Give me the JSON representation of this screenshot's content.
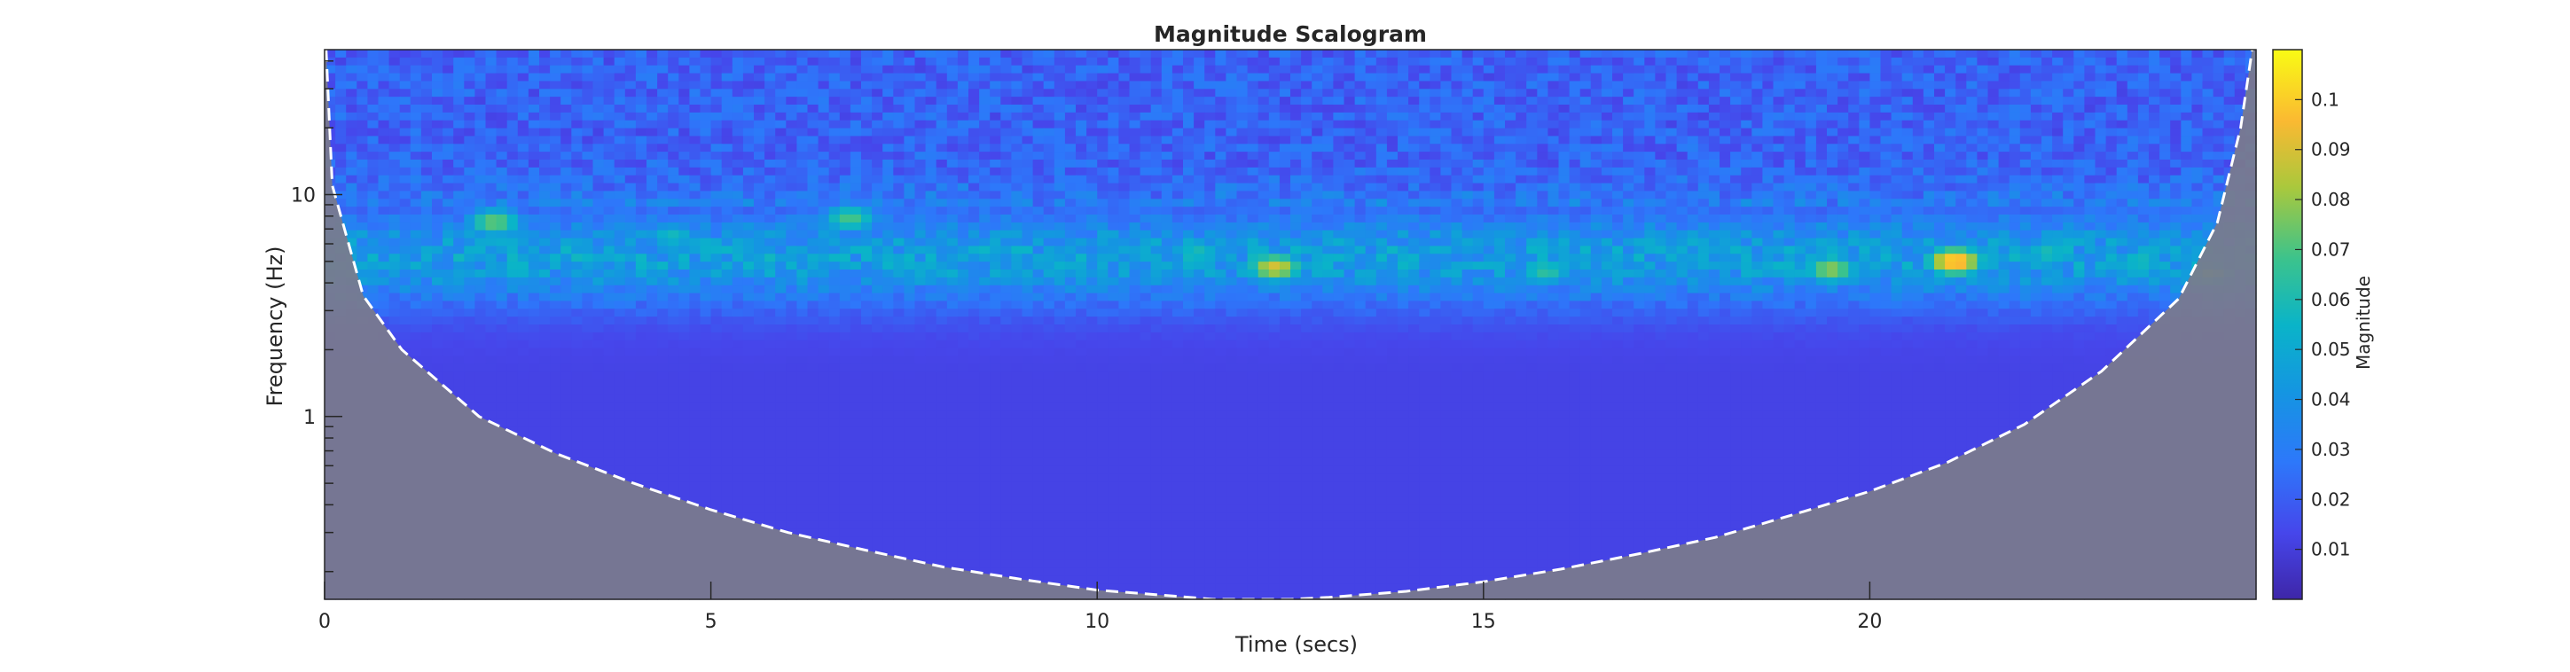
{
  "chart_data": {
    "type": "heatmap",
    "title": "Magnitude Scalogram",
    "xlabel": "Time (secs)",
    "ylabel": "Frequency (Hz)",
    "xlim": [
      0,
      25
    ],
    "ylim": [
      0.15,
      45
    ],
    "yscale": "log",
    "xticks": [
      0,
      5,
      10,
      15,
      20
    ],
    "xtick_labels": [
      "0",
      "5",
      "10",
      "15",
      "20"
    ],
    "yticks": [
      1,
      10
    ],
    "ytick_labels": [
      "1",
      "10"
    ],
    "colorbar": {
      "label": "Magnitude",
      "range": [
        0,
        0.11
      ],
      "ticks": [
        0.01,
        0.02,
        0.03,
        0.04,
        0.05,
        0.06,
        0.07,
        0.08,
        0.09,
        0.1
      ],
      "tick_labels": [
        "0.01",
        "0.02",
        "0.03",
        "0.04",
        "0.05",
        "0.06",
        "0.07",
        "0.08",
        "0.09",
        "0.1"
      ],
      "colormap": "parula"
    },
    "background_level": 0.012,
    "energy_band": {
      "center_hz": 5.2,
      "level": 0.045
    },
    "cone_of_influence": {
      "style": "dashed white",
      "shaded_color": "#7b7b8c",
      "points": [
        [
          0.02,
          45
        ],
        [
          0.1,
          11.0
        ],
        [
          0.5,
          3.5
        ],
        [
          1,
          2.0
        ],
        [
          2,
          1.0
        ],
        [
          3,
          0.68
        ],
        [
          4,
          0.5
        ],
        [
          5,
          0.38
        ],
        [
          6,
          0.3
        ],
        [
          7,
          0.25
        ],
        [
          8,
          0.21
        ],
        [
          9,
          0.185
        ],
        [
          10,
          0.165
        ],
        [
          11,
          0.155
        ],
        [
          11.5,
          0.15
        ],
        [
          12.5,
          0.15
        ],
        [
          13,
          0.153
        ],
        [
          14,
          0.163
        ],
        [
          15,
          0.18
        ],
        [
          16,
          0.205
        ],
        [
          17,
          0.24
        ],
        [
          18,
          0.285
        ],
        [
          19,
          0.36
        ],
        [
          20,
          0.46
        ],
        [
          21,
          0.62
        ],
        [
          22,
          0.92
        ],
        [
          23,
          1.6
        ],
        [
          24,
          3.4
        ],
        [
          24.5,
          7.5
        ],
        [
          24.8,
          20
        ],
        [
          24.95,
          45
        ]
      ]
    },
    "hotspots": [
      {
        "t": 2.2,
        "f": 7.5,
        "value": 0.075
      },
      {
        "t": 2.5,
        "f": 4.5,
        "value": 0.055
      },
      {
        "t": 4.5,
        "f": 6.5,
        "value": 0.058
      },
      {
        "t": 6.8,
        "f": 7.8,
        "value": 0.07
      },
      {
        "t": 8.0,
        "f": 4.5,
        "value": 0.05
      },
      {
        "t": 11.3,
        "f": 5.5,
        "value": 0.06
      },
      {
        "t": 12.3,
        "f": 4.7,
        "value": 0.09
      },
      {
        "t": 15.8,
        "f": 4.5,
        "value": 0.065
      },
      {
        "t": 19.5,
        "f": 4.6,
        "value": 0.08
      },
      {
        "t": 21.1,
        "f": 5.0,
        "value": 0.105
      },
      {
        "t": 22.3,
        "f": 5.5,
        "value": 0.06
      },
      {
        "t": 23.5,
        "f": 5.0,
        "value": 0.06
      },
      {
        "t": 24.4,
        "f": 4.4,
        "value": 0.07
      }
    ]
  }
}
